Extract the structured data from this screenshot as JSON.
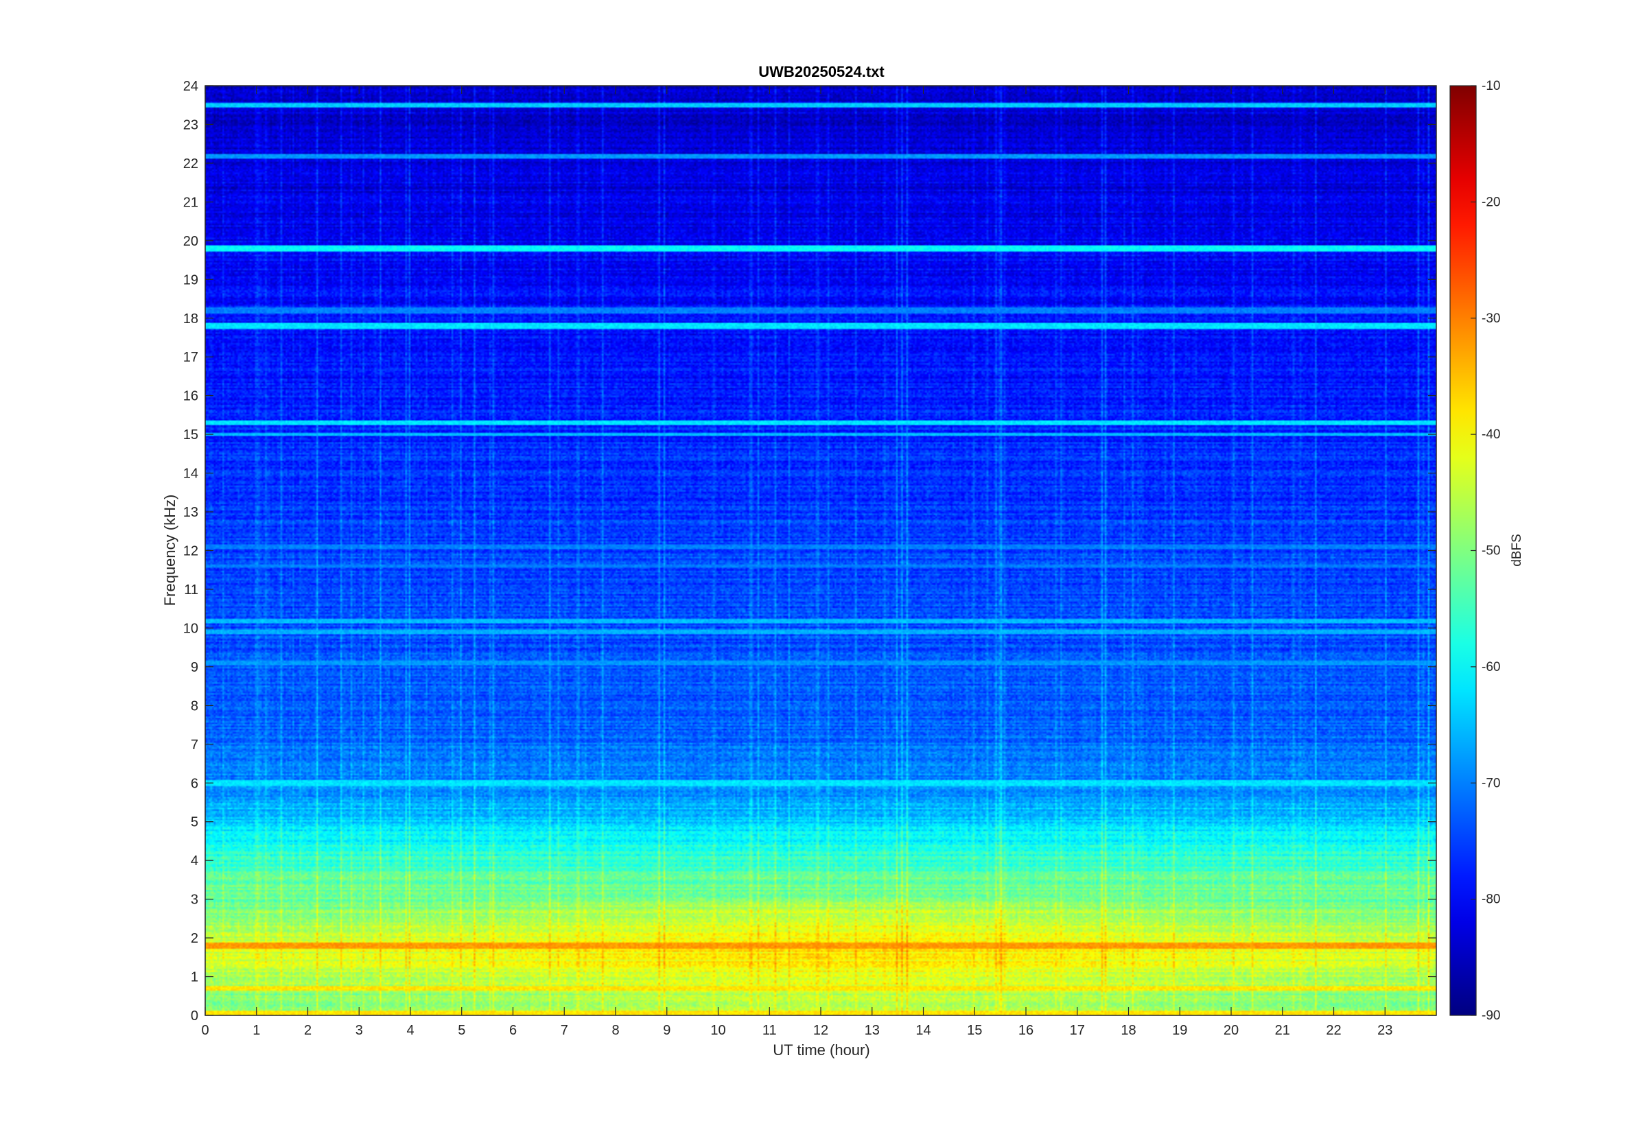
{
  "chart_data": {
    "type": "heatmap",
    "title": "UWB20250524.txt",
    "xlabel": "UT time (hour)",
    "ylabel": "Frequency (kHz)",
    "colorbar_label": "dBFS",
    "colormap": "jet",
    "xlim": [
      0,
      24
    ],
    "ylim": [
      0,
      24
    ],
    "clim": [
      -90,
      -10
    ],
    "x_ticks": [
      0,
      1,
      2,
      3,
      4,
      5,
      6,
      7,
      8,
      9,
      10,
      11,
      12,
      13,
      14,
      15,
      16,
      17,
      18,
      19,
      20,
      21,
      22,
      23
    ],
    "y_ticks": [
      0,
      1,
      2,
      3,
      4,
      5,
      6,
      7,
      8,
      9,
      10,
      11,
      12,
      13,
      14,
      15,
      16,
      17,
      18,
      19,
      20,
      21,
      22,
      23,
      24
    ],
    "colorbar_ticks": [
      -10,
      -20,
      -30,
      -40,
      -50,
      -60,
      -70,
      -80,
      -90
    ],
    "frequency_profile_dbfs": [
      {
        "freq_khz": 0.0,
        "level": -45
      },
      {
        "freq_khz": 0.5,
        "level": -48
      },
      {
        "freq_khz": 1.0,
        "level": -44
      },
      {
        "freq_khz": 1.8,
        "level": -40
      },
      {
        "freq_khz": 2.5,
        "level": -46
      },
      {
        "freq_khz": 3.0,
        "level": -50
      },
      {
        "freq_khz": 4.0,
        "level": -56
      },
      {
        "freq_khz": 5.0,
        "level": -64
      },
      {
        "freq_khz": 6.0,
        "level": -70
      },
      {
        "freq_khz": 8.0,
        "level": -73
      },
      {
        "freq_khz": 12.0,
        "level": -75
      },
      {
        "freq_khz": 16.0,
        "level": -78
      },
      {
        "freq_khz": 19.0,
        "level": -80
      },
      {
        "freq_khz": 21.0,
        "level": -82
      },
      {
        "freq_khz": 24.0,
        "level": -84
      }
    ],
    "narrowband_lines": [
      {
        "freq_khz": 19.8,
        "level": -60
      },
      {
        "freq_khz": 23.5,
        "level": -64
      },
      {
        "freq_khz": 22.2,
        "level": -68
      },
      {
        "freq_khz": 17.8,
        "level": -62
      },
      {
        "freq_khz": 18.2,
        "level": -70
      },
      {
        "freq_khz": 15.3,
        "level": -62
      },
      {
        "freq_khz": 15.0,
        "level": -65
      },
      {
        "freq_khz": 12.1,
        "level": -70
      },
      {
        "freq_khz": 11.6,
        "level": -70
      },
      {
        "freq_khz": 10.2,
        "level": -65
      },
      {
        "freq_khz": 9.9,
        "level": -66
      },
      {
        "freq_khz": 9.1,
        "level": -68
      },
      {
        "freq_khz": 6.0,
        "level": -62
      },
      {
        "freq_khz": 1.8,
        "level": -32
      },
      {
        "freq_khz": 0.7,
        "level": -38
      },
      {
        "freq_khz": 0.05,
        "level": -38
      }
    ]
  }
}
